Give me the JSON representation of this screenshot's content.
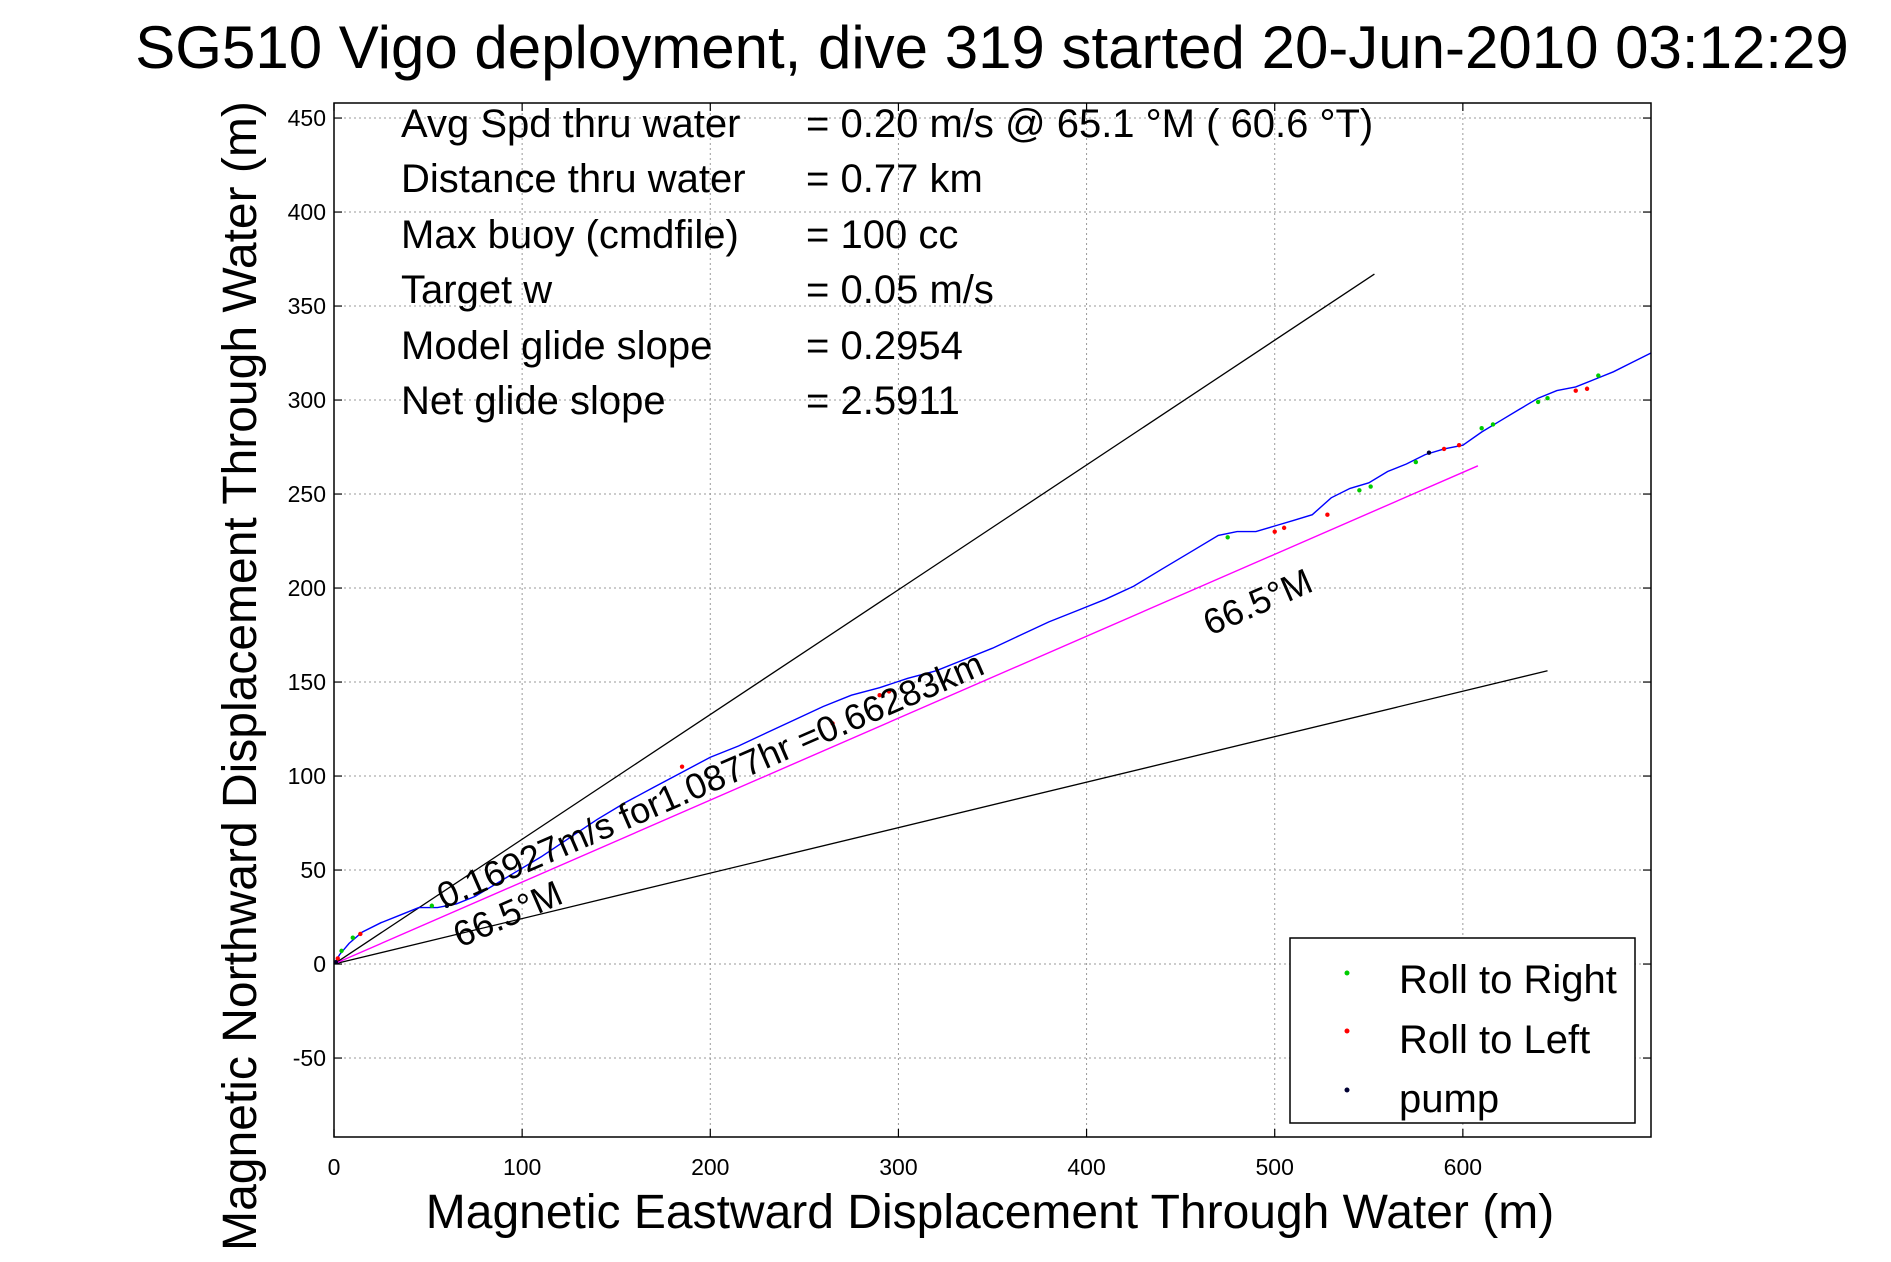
{
  "chart_data": {
    "type": "line",
    "title": "SG510 Vigo deployment, dive 319 started 20-Jun-2010 03:12:29",
    "xlabel": "Magnetic Eastward Displacement Through Water (m)",
    "ylabel": "Magnetic Northward Displacement Through Water (m)",
    "xlim": [
      0,
      700
    ],
    "ylim": [
      -92,
      458
    ],
    "xticks": [
      "0",
      "100",
      "200",
      "300",
      "400",
      "500",
      "600"
    ],
    "yticks": [
      "-50",
      "0",
      "50",
      "100",
      "150",
      "200",
      "250",
      "300",
      "350",
      "400",
      "450"
    ],
    "grid": true,
    "legend_position": "bottom-right",
    "stats": [
      {
        "label": "Avg Spd thru water",
        "value": "=  0.20 m/s @  65.1 °M ( 60.6 °T)"
      },
      {
        "label": "Distance thru water",
        "value": "=  0.77 km"
      },
      {
        "label": "Max buoy (cmdfile)",
        "value": "= 100 cc"
      },
      {
        "label": "Target w",
        "value": "= 0.05 m/s"
      },
      {
        "label": "Model glide slope",
        "value": "= 0.2954"
      },
      {
        "label": "Net glide slope",
        "value": "= 2.5911"
      }
    ],
    "annotations": {
      "current_text": "0.16927m/s for1.0877hr =0.66283km",
      "heading_upper": "66.5°M",
      "heading_lower": "66.5°M"
    },
    "series": [
      {
        "name": "track",
        "color": "#0000ff",
        "x": [
          0,
          3,
          8,
          15,
          25,
          35,
          45,
          55,
          65,
          75,
          85,
          95,
          110,
          125,
          140,
          155,
          170,
          185,
          200,
          215,
          230,
          245,
          260,
          275,
          290,
          305,
          320,
          335,
          350,
          365,
          380,
          395,
          410,
          425,
          440,
          455,
          470,
          480,
          490,
          500,
          510,
          520,
          530,
          540,
          550,
          560,
          570,
          580,
          590,
          600,
          610,
          620,
          630,
          640,
          650,
          660,
          670,
          680,
          690,
          700
        ],
        "y": [
          0,
          5,
          11,
          17,
          22,
          26,
          30,
          30,
          32,
          36,
          42,
          48,
          57,
          67,
          77,
          86,
          94,
          102,
          110,
          116,
          123,
          130,
          137,
          143,
          147,
          152,
          156,
          162,
          168,
          175,
          182,
          188,
          194,
          201,
          210,
          219,
          228,
          230,
          230,
          233,
          236,
          239,
          248,
          253,
          256,
          262,
          266,
          271,
          274,
          276,
          283,
          289,
          295,
          301,
          305,
          307,
          311,
          315,
          320,
          325
        ]
      },
      {
        "name": "current",
        "color": "#ff00ff",
        "x": [
          0,
          608
        ],
        "y": [
          0,
          265
        ]
      }
    ],
    "guide_lines": [
      {
        "x": [
          0,
          553
        ],
        "y": [
          0,
          367
        ]
      },
      {
        "x": [
          0,
          645
        ],
        "y": [
          0,
          156
        ]
      }
    ],
    "markers": [
      {
        "name": "Roll to Right",
        "color": "#00cc00",
        "x": [
          4,
          10,
          52,
          60,
          475,
          545,
          551,
          575,
          610,
          616,
          640,
          645,
          672
        ],
        "y": [
          7,
          14,
          31,
          31,
          227,
          252,
          254,
          267,
          285,
          287,
          299,
          301,
          313
        ]
      },
      {
        "name": "Roll to Left",
        "color": "#ff0000",
        "x": [
          2,
          14,
          185,
          265,
          290,
          295,
          500,
          505,
          528,
          590,
          598,
          660,
          666
        ],
        "y": [
          3,
          16,
          105,
          128,
          143,
          145,
          230,
          232,
          239,
          274,
          276,
          305,
          306
        ]
      },
      {
        "name": "pump",
        "color": "#000033",
        "x": [
          1,
          60,
          582
        ],
        "y": [
          1,
          31,
          272
        ]
      }
    ],
    "legend": [
      {
        "label": "Roll to Right",
        "color": "#00cc00"
      },
      {
        "label": "Roll to Left",
        "color": "#ff0000"
      },
      {
        "label": "pump",
        "color": "#000033"
      }
    ]
  }
}
